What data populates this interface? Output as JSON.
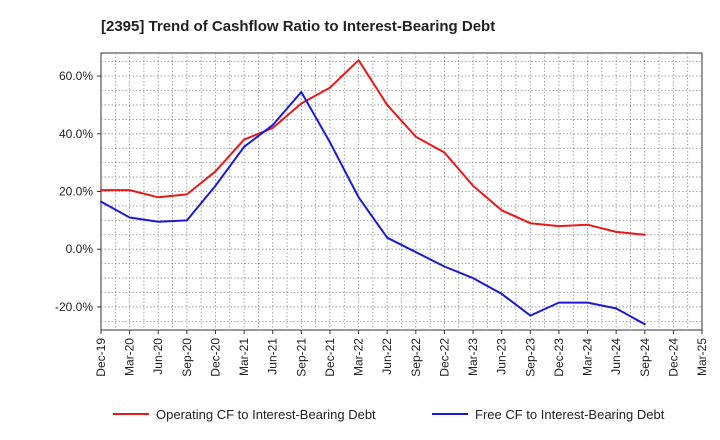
{
  "chart_data": {
    "type": "line",
    "title": "[2395]  Trend of Cashflow Ratio to Interest-Bearing Debt",
    "xlabel": "",
    "ylabel": "",
    "x": [
      "Dec-19",
      "Mar-20",
      "Jun-20",
      "Sep-20",
      "Dec-20",
      "Mar-21",
      "Jun-21",
      "Sep-21",
      "Dec-21",
      "Mar-22",
      "Jun-22",
      "Sep-22",
      "Dec-22",
      "Mar-23",
      "Jun-23",
      "Sep-23",
      "Dec-23",
      "Mar-24",
      "Jun-24",
      "Sep-24",
      "Dec-24",
      "Mar-25"
    ],
    "ylim": [
      -28,
      68
    ],
    "y_ticks": [
      {
        "value": 60,
        "label": "60.0%"
      },
      {
        "value": 40,
        "label": "40.0%"
      },
      {
        "value": 20,
        "label": "20.0%"
      },
      {
        "value": 0,
        "label": "0.0%"
      },
      {
        "value": -20,
        "label": "-20.0%"
      }
    ],
    "grid": true,
    "legend_position": "bottom",
    "series": [
      {
        "name": "Operating CF to Interest-Bearing Debt",
        "color": "#e8191b",
        "values": [
          20.5,
          20.5,
          18.0,
          19.0,
          27.0,
          38.0,
          42.0,
          50.5,
          56.0,
          65.5,
          50.0,
          39.0,
          33.5,
          22.0,
          13.5,
          9.0,
          8.0,
          8.5,
          6.0,
          5.0,
          null,
          null
        ]
      },
      {
        "name": "Free CF to Interest-Bearing Debt",
        "color": "#1a1ad6",
        "values": [
          16.5,
          11.0,
          9.5,
          10.0,
          22.0,
          35.5,
          43.0,
          54.5,
          37.0,
          18.0,
          4.0,
          -1.0,
          -6.0,
          -10.0,
          -15.5,
          -23.0,
          -18.5,
          -18.5,
          -20.5,
          -26.0,
          null,
          null
        ]
      }
    ]
  }
}
